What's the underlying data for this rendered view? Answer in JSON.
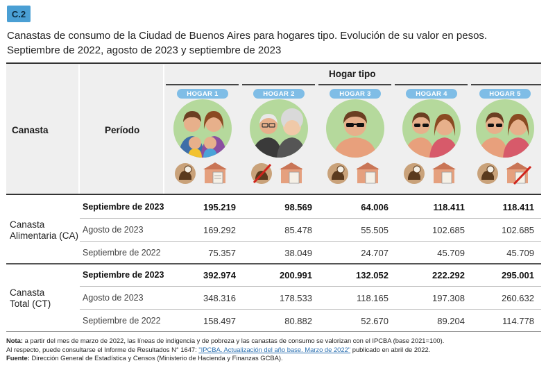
{
  "badge": "C.2",
  "title_line1": "Canastas de consumo de la Ciudad de Buenos Aires para hogares tipo. Evolución de su valor en pesos.",
  "title_line2": "Septiembre de 2022, agosto de 2023 y septiembre de 2023",
  "header": {
    "canasta": "Canasta",
    "periodo": "Período",
    "hogar_tipo": "Hogar tipo",
    "hogares": [
      "HOGAR 1",
      "HOGAR 2",
      "HOGAR 3",
      "HOGAR 4",
      "HOGAR 5"
    ]
  },
  "groups": [
    {
      "label_line1": "Canasta",
      "label_line2": "Alimentaria (CA)",
      "rows": [
        {
          "period": "Septiembre de 2023",
          "bold": true,
          "values": [
            "195.219",
            "98.569",
            "64.006",
            "118.411",
            "118.411"
          ]
        },
        {
          "period": "Agosto de 2023",
          "bold": false,
          "values": [
            "169.292",
            "85.478",
            "55.505",
            "102.685",
            "102.685"
          ]
        },
        {
          "period": "Septiembre de 2022",
          "bold": false,
          "values": [
            "75.357",
            "38.049",
            "24.707",
            "45.709",
            "45.709"
          ]
        }
      ]
    },
    {
      "label_line1": "Canasta",
      "label_line2": "Total (CT)",
      "rows": [
        {
          "period": "Septiembre de 2023",
          "bold": true,
          "values": [
            "392.974",
            "200.991",
            "132.052",
            "222.292",
            "295.001"
          ]
        },
        {
          "period": "Agosto de 2023",
          "bold": false,
          "values": [
            "348.316",
            "178.533",
            "118.165",
            "197.308",
            "260.632"
          ]
        },
        {
          "period": "Septiembre de 2022",
          "bold": false,
          "values": [
            "158.497",
            "80.882",
            "52.670",
            "89.204",
            "114.778"
          ]
        }
      ]
    }
  ],
  "notes": {
    "nota_label": "Nota:",
    "nota_text": "a partir del mes de marzo de 2022, las líneas de indigencia y de pobreza y las canastas de consumo se valorizan con el IPCBA (base 2021=100).",
    "line2_pre": "Al respecto, puede consultarse el Informe de Resultados N° 1647: ",
    "line2_link": "\"IPCBA. Actualización del año base. Marzo de 2022\"",
    "line2_post": " publicado en abril de 2022.",
    "fuente_label": "Fuente:",
    "fuente_text": "Dirección General de Estadística y Censos (Ministerio de Hacienda y Finanzas GCBA)."
  },
  "colors": {
    "badge": "#4a9fd4",
    "pill": "#7fbde6",
    "circle_bg": "#b5d99c",
    "header_bg": "#efefef"
  }
}
